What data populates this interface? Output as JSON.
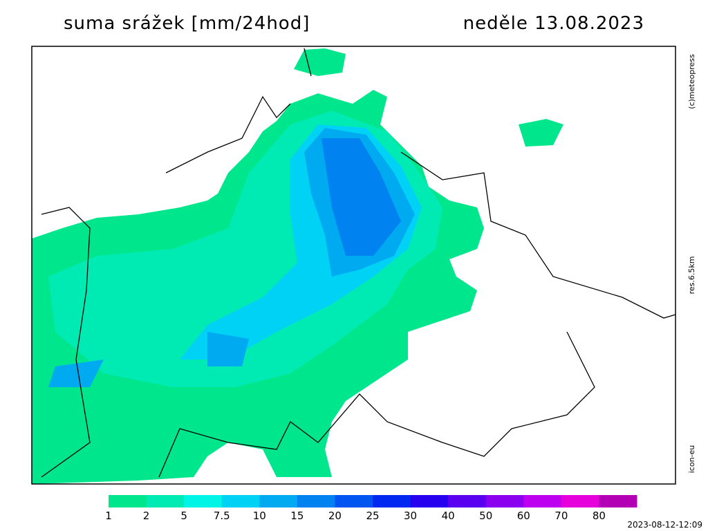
{
  "header": {
    "title": "suma srážek [mm/24hod]",
    "date": "neděle 13.08.2023"
  },
  "side_labels": {
    "copyright": "(c)meteopress",
    "resolution": "res.6.5km",
    "model": "icon-eu"
  },
  "legend": [
    {
      "label": 1,
      "color": "#00e68c"
    },
    {
      "label": 2,
      "color": "#00ebb4"
    },
    {
      "label": 5,
      "color": "#00f5e6"
    },
    {
      "label": 7.5,
      "color": "#00d2f5"
    },
    {
      "label": 10,
      "color": "#00aaf0"
    },
    {
      "label": 15,
      "color": "#0082f0"
    },
    {
      "label": 20,
      "color": "#0055f0"
    },
    {
      "label": 25,
      "color": "#0028f0"
    },
    {
      "label": 30,
      "color": "#2800f0"
    },
    {
      "label": 40,
      "color": "#5a00f0"
    },
    {
      "label": 50,
      "color": "#8c00f0"
    },
    {
      "label": 60,
      "color": "#be00f0"
    },
    {
      "label": 70,
      "color": "#e600dc"
    },
    {
      "label": 80,
      "color": "#b400b4"
    }
  ],
  "footer": {
    "timestamp": "2023-08-12-12:09"
  }
}
